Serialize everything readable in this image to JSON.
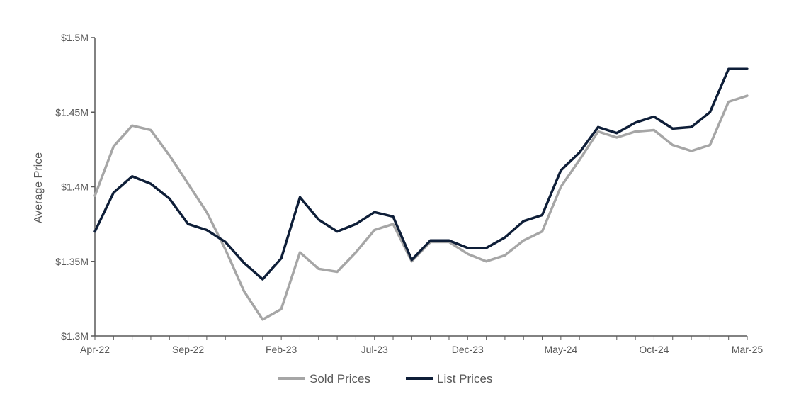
{
  "chart_data": {
    "type": "line",
    "ylabel": "Average Price",
    "ylim": [
      1.3,
      1.5
    ],
    "y_ticks": [
      1.3,
      1.35,
      1.4,
      1.45,
      1.5
    ],
    "y_tick_labels": [
      "$1.3M",
      "$1.35M",
      "$1.4M",
      "$1.45M",
      "$1.5M"
    ],
    "x_tick_labels": [
      {
        "index": 0,
        "label": "Apr-22"
      },
      {
        "index": 5,
        "label": "Sep-22"
      },
      {
        "index": 10,
        "label": "Feb-23"
      },
      {
        "index": 15,
        "label": "Jul-23"
      },
      {
        "index": 20,
        "label": "Dec-23"
      },
      {
        "index": 25,
        "label": "May-24"
      },
      {
        "index": 30,
        "label": "Oct-24"
      },
      {
        "index": 35,
        "label": "Mar-25"
      }
    ],
    "x": [
      "Apr-22",
      "May-22",
      "Jun-22",
      "Jul-22",
      "Aug-22",
      "Sep-22",
      "Oct-22",
      "Nov-22",
      "Dec-22",
      "Jan-23",
      "Feb-23",
      "Mar-23",
      "Apr-23",
      "May-23",
      "Jun-23",
      "Jul-23",
      "Aug-23",
      "Sep-23",
      "Oct-23",
      "Nov-23",
      "Dec-23",
      "Jan-24",
      "Feb-24",
      "Mar-24",
      "Apr-24",
      "May-24",
      "Jun-24",
      "Jul-24",
      "Aug-24",
      "Sep-24",
      "Oct-24",
      "Nov-24",
      "Dec-24",
      "Jan-25",
      "Feb-25",
      "Mar-25"
    ],
    "series": [
      {
        "name": "Sold Prices",
        "color": "#a6a6a6",
        "values": [
          1.394,
          1.427,
          1.441,
          1.438,
          1.421,
          1.402,
          1.383,
          1.358,
          1.33,
          1.311,
          1.318,
          1.356,
          1.345,
          1.343,
          1.356,
          1.371,
          1.375,
          1.35,
          1.363,
          1.363,
          1.355,
          1.35,
          1.354,
          1.364,
          1.37,
          1.4,
          1.418,
          1.437,
          1.433,
          1.437,
          1.438,
          1.428,
          1.424,
          1.428,
          1.457,
          1.461
        ]
      },
      {
        "name": "List Prices",
        "color": "#0e1e38",
        "values": [
          1.37,
          1.396,
          1.407,
          1.402,
          1.392,
          1.375,
          1.371,
          1.363,
          1.349,
          1.338,
          1.352,
          1.393,
          1.378,
          1.37,
          1.375,
          1.383,
          1.38,
          1.351,
          1.364,
          1.364,
          1.359,
          1.359,
          1.366,
          1.377,
          1.381,
          1.411,
          1.423,
          1.44,
          1.436,
          1.443,
          1.447,
          1.439,
          1.44,
          1.45,
          1.479,
          1.479
        ]
      }
    ],
    "legend": "bottom-center",
    "grid": false
  }
}
